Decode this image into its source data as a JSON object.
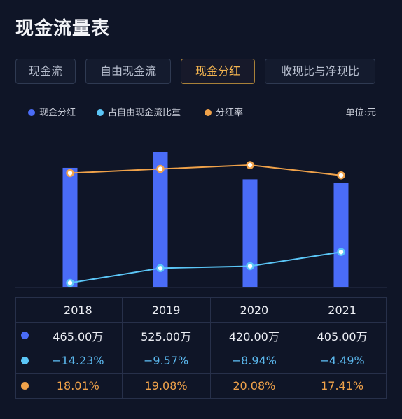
{
  "page_title": "现金流量表",
  "tabs": [
    {
      "label": "现金流",
      "active": false
    },
    {
      "label": "自由现金流",
      "active": false
    },
    {
      "label": "现金分红",
      "active": true
    },
    {
      "label": "收现比与净现比",
      "active": false
    }
  ],
  "legend": [
    {
      "label": "现金分红",
      "color": "#4a6cf7"
    },
    {
      "label": "占自由现金流比重",
      "color": "#5bc6f7"
    },
    {
      "label": "分红率",
      "color": "#f0a24a"
    }
  ],
  "unit_label": "单位:元",
  "chart_data": {
    "type": "bar+line",
    "categories": [
      "2018",
      "2019",
      "2020",
      "2021"
    ],
    "series": [
      {
        "name": "现金分红",
        "type": "bar",
        "color": "#4a6cf7",
        "values": [
          4650000,
          5250000,
          4200000,
          4050000
        ],
        "labels": [
          "465.00万",
          "525.00万",
          "420.00万",
          "405.00万"
        ]
      },
      {
        "name": "占自由现金流比重",
        "type": "line",
        "color": "#5bc6f7",
        "values": [
          -14.23,
          -9.57,
          -8.94,
          -4.49
        ],
        "labels": [
          "−14.23%",
          "−9.57%",
          "−8.94%",
          "−4.49%"
        ]
      },
      {
        "name": "分红率",
        "type": "line",
        "color": "#f0a24a",
        "values": [
          18.01,
          19.08,
          20.08,
          17.41
        ],
        "labels": [
          "18.01%",
          "19.08%",
          "20.08%",
          "17.41%"
        ]
      }
    ],
    "grid": false,
    "legend_position": "top-left"
  }
}
